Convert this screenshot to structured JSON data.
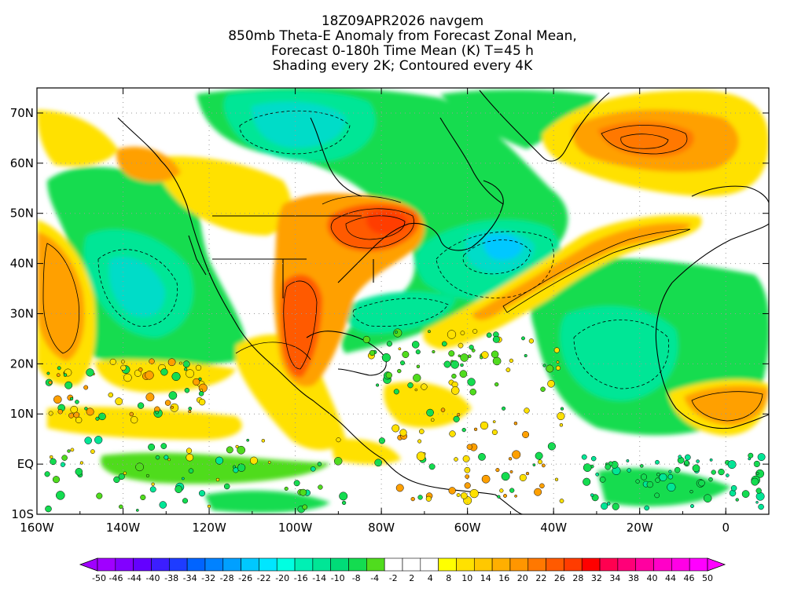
{
  "title": {
    "line1": "18Z09APR2026 navgem",
    "line2": "850mb Theta-E Anomaly from Forecast Zonal Mean,",
    "line3": "Forecast 0-180h Time Mean (K) T=45 h",
    "line4": "Shading every 2K; Contoured every 4K"
  },
  "map": {
    "lon_range": [
      -160,
      10
    ],
    "lat_range": [
      -10,
      75
    ],
    "lon_ticks": [
      {
        "value": -160,
        "label": "160W"
      },
      {
        "value": -140,
        "label": "140W"
      },
      {
        "value": -120,
        "label": "120W"
      },
      {
        "value": -100,
        "label": "100W"
      },
      {
        "value": -80,
        "label": "80W"
      },
      {
        "value": -60,
        "label": "60W"
      },
      {
        "value": -40,
        "label": "40W"
      },
      {
        "value": -20,
        "label": "20W"
      },
      {
        "value": 0,
        "label": "0"
      }
    ],
    "lat_ticks": [
      {
        "value": 70,
        "label": "70N"
      },
      {
        "value": 60,
        "label": "60N"
      },
      {
        "value": 50,
        "label": "50N"
      },
      {
        "value": 40,
        "label": "40N"
      },
      {
        "value": 30,
        "label": "30N"
      },
      {
        "value": 20,
        "label": "20N"
      },
      {
        "value": 10,
        "label": "10N"
      },
      {
        "value": 0,
        "label": "EQ"
      },
      {
        "value": -10,
        "label": "10S"
      }
    ],
    "anomaly_features": [
      {
        "name": "Eastern North America warm plume",
        "lon": -78,
        "lat": 48,
        "value": 24
      },
      {
        "name": "Mexico ridge warm tongue",
        "lon": -97,
        "lat": 25,
        "value": 22
      },
      {
        "name": "Greenland Sea warm pool",
        "lon": -20,
        "lat": 66,
        "value": 18
      },
      {
        "name": "NE Pacific warm band",
        "lon": -154,
        "lat": 38,
        "value": 14
      },
      {
        "name": "Atlantic warm conveyor",
        "lon": -30,
        "lat": 44,
        "value": 16
      },
      {
        "name": "West Africa warm area",
        "lon": -3,
        "lat": 11,
        "value": 14
      },
      {
        "name": "Hudson Bay cold pool",
        "lon": -110,
        "lat": 67,
        "value": -16
      },
      {
        "name": "Western Atlantic cold pool",
        "lon": -52,
        "lat": 40,
        "value": -18
      },
      {
        "name": "Central Atlantic cold region",
        "lon": -30,
        "lat": 26,
        "value": -12
      },
      {
        "name": "Eastern Pacific cold region",
        "lon": -125,
        "lat": 32,
        "value": -10
      }
    ]
  },
  "colorbar": {
    "labels": [
      "-50",
      "-46",
      "-44",
      "-40",
      "-38",
      "-34",
      "-32",
      "-28",
      "-26",
      "-22",
      "-20",
      "-16",
      "-14",
      "-10",
      "-8",
      "-4",
      "-2",
      "2",
      "4",
      "8",
      "10",
      "14",
      "16",
      "20",
      "22",
      "26",
      "28",
      "32",
      "34",
      "38",
      "40",
      "44",
      "46",
      "50"
    ],
    "colors": [
      "#a000ff",
      "#8200ff",
      "#6400ff",
      "#3c1eff",
      "#1e3cff",
      "#0064ff",
      "#0082ff",
      "#00a0ff",
      "#00c8ff",
      "#00e6ff",
      "#00ffe1",
      "#00f0b4",
      "#00e696",
      "#00dc78",
      "#14dc50",
      "#50dc1e",
      "#ffffff",
      "#ffffff",
      "#ffffff",
      "#ffff00",
      "#ffe100",
      "#ffc800",
      "#ffaf00",
      "#ff9600",
      "#ff7800",
      "#ff5a00",
      "#ff3c00",
      "#ff0000",
      "#ff0050",
      "#ff0078",
      "#ff00a0",
      "#ff00c8",
      "#ff00e6",
      "#ff00ff"
    ]
  }
}
